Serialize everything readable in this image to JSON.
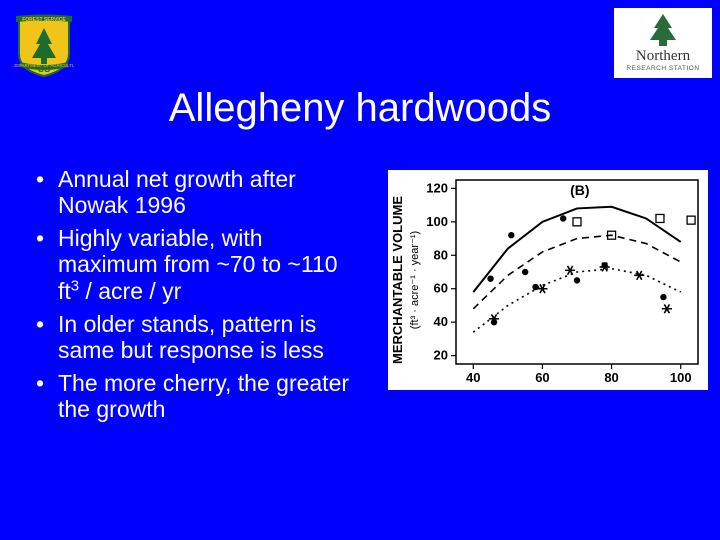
{
  "title": "Allegheny hardwoods",
  "bullets": [
    "Annual net growth after Nowak 1996",
    "Highly variable, with maximum from ~70 to ~110 ft³ / acre / yr",
    "In older stands, pattern is same but response is less",
    "The more cherry, the greater the growth"
  ],
  "logos": {
    "left": {
      "name": "us-forest-service-shield",
      "shield_fill": "#f0c419",
      "tree_fill": "#1e6b2e",
      "text_top": "US",
      "banner_text": "FOREST SERVICE"
    },
    "right": {
      "name": "northern-research-station",
      "tree_fill": "#2b6b3a",
      "text": "Northern",
      "subtext": "RESEARCH STATION"
    }
  },
  "chart": {
    "type": "scatter-with-curves",
    "panel_label": "(B)",
    "xlabel": "",
    "ylabel": "MERCHANTABLE VOLUME",
    "ylabel_sub": "(ft³ · acre⁻¹ · year⁻¹)",
    "xlim": [
      35,
      105
    ],
    "ylim": [
      15,
      125
    ],
    "xticks": [
      40,
      60,
      80,
      100
    ],
    "yticks": [
      20,
      40,
      60,
      80,
      100,
      120
    ],
    "tick_fontsize": 13,
    "label_fontsize": 13,
    "background_color": "#ffffff",
    "axis_color": "#000000",
    "curves": [
      {
        "style": "solid",
        "color": "#000000",
        "width": 2,
        "points": [
          [
            40,
            58
          ],
          [
            50,
            84
          ],
          [
            60,
            100
          ],
          [
            70,
            108
          ],
          [
            80,
            109
          ],
          [
            90,
            102
          ],
          [
            100,
            88
          ]
        ]
      },
      {
        "style": "dashed",
        "color": "#000000",
        "width": 1.6,
        "points": [
          [
            40,
            48
          ],
          [
            50,
            68
          ],
          [
            60,
            82
          ],
          [
            70,
            90
          ],
          [
            80,
            92
          ],
          [
            90,
            87
          ],
          [
            100,
            76
          ]
        ]
      },
      {
        "style": "dotted",
        "color": "#000000",
        "width": 1.6,
        "points": [
          [
            40,
            34
          ],
          [
            50,
            50
          ],
          [
            60,
            62
          ],
          [
            70,
            70
          ],
          [
            80,
            72
          ],
          [
            90,
            68
          ],
          [
            100,
            58
          ]
        ]
      }
    ],
    "markers": [
      {
        "shape": "dot",
        "x": 45,
        "y": 66
      },
      {
        "shape": "dot",
        "x": 46,
        "y": 40
      },
      {
        "shape": "dot",
        "x": 51,
        "y": 92
      },
      {
        "shape": "dot",
        "x": 55,
        "y": 70
      },
      {
        "shape": "dot",
        "x": 58,
        "y": 61
      },
      {
        "shape": "dot",
        "x": 66,
        "y": 102
      },
      {
        "shape": "dot",
        "x": 70,
        "y": 65
      },
      {
        "shape": "dot",
        "x": 78,
        "y": 74
      },
      {
        "shape": "dot",
        "x": 95,
        "y": 55
      },
      {
        "shape": "star",
        "x": 46,
        "y": 42
      },
      {
        "shape": "star",
        "x": 60,
        "y": 60
      },
      {
        "shape": "star",
        "x": 68,
        "y": 71
      },
      {
        "shape": "star",
        "x": 78,
        "y": 73
      },
      {
        "shape": "star",
        "x": 88,
        "y": 68
      },
      {
        "shape": "star",
        "x": 96,
        "y": 48
      },
      {
        "shape": "square",
        "x": 70,
        "y": 100
      },
      {
        "shape": "square",
        "x": 80,
        "y": 92
      },
      {
        "shape": "square",
        "x": 94,
        "y": 102
      },
      {
        "shape": "square",
        "x": 103,
        "y": 101
      }
    ]
  }
}
